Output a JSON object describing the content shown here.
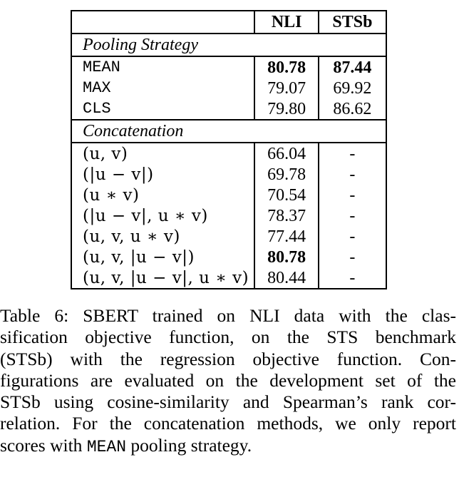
{
  "table": {
    "headers": [
      "",
      "NLI",
      "STSb"
    ],
    "sections": [
      {
        "title": "Pooling Strategy",
        "rows": [
          {
            "label": "MEAN",
            "label_style": "mono",
            "nli": "80.78",
            "nli_bold": true,
            "stsb": "87.44",
            "stsb_bold": true
          },
          {
            "label": "MAX",
            "label_style": "mono",
            "nli": "79.07",
            "nli_bold": false,
            "stsb": "69.92",
            "stsb_bold": false
          },
          {
            "label": "CLS",
            "label_style": "mono",
            "nli": "79.80",
            "nli_bold": false,
            "stsb": "86.62",
            "stsb_bold": false
          }
        ]
      },
      {
        "title": "Concatenation",
        "rows": [
          {
            "label": "(u, v)",
            "label_style": "math",
            "nli": "66.04",
            "nli_bold": false,
            "stsb": "-",
            "stsb_bold": false
          },
          {
            "label": "(|u − v|)",
            "label_style": "math",
            "nli": "69.78",
            "nli_bold": false,
            "stsb": "-",
            "stsb_bold": false
          },
          {
            "label": "(u ∗ v)",
            "label_style": "math",
            "nli": "70.54",
            "nli_bold": false,
            "stsb": "-",
            "stsb_bold": false
          },
          {
            "label": "(|u − v|, u ∗ v)",
            "label_style": "math",
            "nli": "78.37",
            "nli_bold": false,
            "stsb": "-",
            "stsb_bold": false
          },
          {
            "label": "(u, v, u ∗ v)",
            "label_style": "math",
            "nli": "77.44",
            "nli_bold": false,
            "stsb": "-",
            "stsb_bold": false
          },
          {
            "label": "(u, v, |u − v|)",
            "label_style": "math",
            "nli": "80.78",
            "nli_bold": true,
            "stsb": "-",
            "stsb_bold": false
          },
          {
            "label": "(u, v, |u − v|, u ∗ v)",
            "label_style": "math",
            "nli": "80.44",
            "nli_bold": false,
            "stsb": "-",
            "stsb_bold": false
          }
        ]
      }
    ]
  },
  "caption": {
    "lines": [
      "Table 6: SBERT trained on NLI data with the clas-",
      "sification objective function, on the STS benchmark",
      "(STSb) with the regression objective function. Con-",
      "figurations are evaluated on the development set of the",
      "STSb using cosine-similarity and Spearman’s rank cor-",
      "relation. For the concatenation methods, we only report"
    ],
    "last_line_prefix": "scores with ",
    "last_line_code": "MEAN",
    "last_line_suffix": " pooling strategy."
  }
}
